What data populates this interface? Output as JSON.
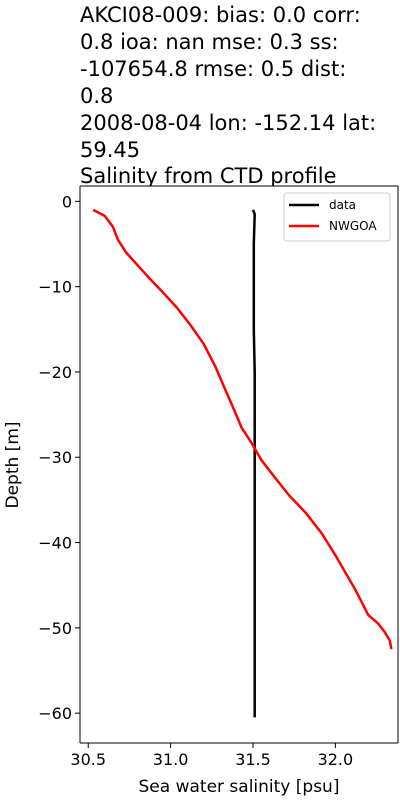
{
  "chart_data": {
    "type": "line",
    "title_lines": [
      "AKCI08-009: bias: 0.0  corr:",
      "0.8  ioa: nan  mse: 0.3  ss:",
      "-107654.8  rmse: 0.5  dist:",
      "0.8",
      "2008-08-04 lon: -152.14 lat:",
      "59.45",
      "Salinity from CTD profile"
    ],
    "xlabel": "Sea water salinity [psu]",
    "ylabel": "Depth [m]",
    "xlim": [
      30.45,
      32.38
    ],
    "ylim": [
      -63.5,
      1.8
    ],
    "x_ticks": [
      30.5,
      31.0,
      31.5,
      32.0
    ],
    "x_tick_labels": [
      "30.5",
      "31.0",
      "31.5",
      "32.0"
    ],
    "y_ticks": [
      0,
      -10,
      -20,
      -30,
      -40,
      -50,
      -60
    ],
    "y_tick_labels": [
      "0",
      "−10",
      "−20",
      "−30",
      "−40",
      "−50",
      "−60"
    ],
    "legend": {
      "placement": "top-right"
    },
    "series": [
      {
        "name": "data",
        "color": "#000000",
        "points": [
          [
            31.5,
            -1.0
          ],
          [
            31.51,
            -1.5
          ],
          [
            31.505,
            -5
          ],
          [
            31.505,
            -10
          ],
          [
            31.505,
            -15
          ],
          [
            31.51,
            -20
          ],
          [
            31.51,
            -25
          ],
          [
            31.51,
            -30
          ],
          [
            31.51,
            -35
          ],
          [
            31.51,
            -40
          ],
          [
            31.51,
            -45
          ],
          [
            31.51,
            -50
          ],
          [
            31.51,
            -55
          ],
          [
            31.51,
            -60
          ],
          [
            31.51,
            -60.5
          ]
        ]
      },
      {
        "name": "NWGOA",
        "color": "#ff0000",
        "points": [
          [
            30.53,
            -1.0
          ],
          [
            30.6,
            -1.7
          ],
          [
            30.65,
            -3.0
          ],
          [
            30.68,
            -4.5
          ],
          [
            30.73,
            -6.0
          ],
          [
            30.8,
            -7.5
          ],
          [
            30.87,
            -9.0
          ],
          [
            30.95,
            -10.6
          ],
          [
            31.04,
            -12.5
          ],
          [
            31.12,
            -14.5
          ],
          [
            31.2,
            -16.7
          ],
          [
            31.27,
            -19.3
          ],
          [
            31.33,
            -22.0
          ],
          [
            31.38,
            -24.2
          ],
          [
            31.43,
            -26.5
          ],
          [
            31.49,
            -28.3
          ],
          [
            31.55,
            -30.3
          ],
          [
            31.63,
            -32.3
          ],
          [
            31.72,
            -34.5
          ],
          [
            31.82,
            -36.5
          ],
          [
            31.92,
            -39.0
          ],
          [
            32.0,
            -41.5
          ],
          [
            32.06,
            -43.5
          ],
          [
            32.12,
            -45.5
          ],
          [
            32.16,
            -47.0
          ],
          [
            32.2,
            -48.5
          ],
          [
            32.26,
            -49.5
          ],
          [
            32.3,
            -50.5
          ],
          [
            32.33,
            -51.5
          ],
          [
            32.34,
            -52.5
          ]
        ]
      }
    ]
  }
}
